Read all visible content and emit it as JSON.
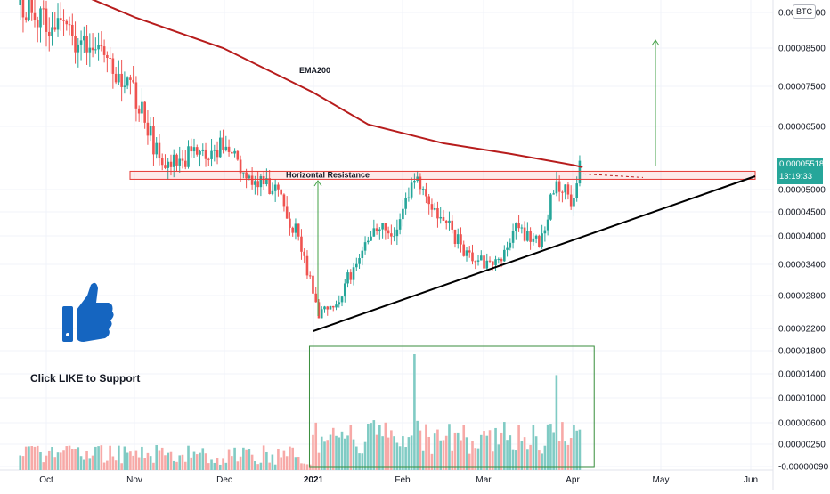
{
  "chart_data": {
    "type": "candlestick",
    "symbol_badge": "BTC",
    "price_axis_labels": [
      "0.00009500",
      "0.00008500",
      "0.00007500",
      "0.00006500",
      "0.00005000",
      "0.00004500",
      "0.00004000",
      "0.00003400",
      "0.00002800",
      "0.00002200",
      "0.00001800",
      "0.00001400",
      "0.00001000",
      "0.00000600",
      "0.00000250",
      "-0.00000090"
    ],
    "time_axis_labels": [
      "Oct",
      "Nov",
      "Dec",
      "2021",
      "Feb",
      "Mar",
      "Apr",
      "May",
      "Jun"
    ],
    "current_price": "0.00005518",
    "countdown": "13:19:33",
    "annotations": {
      "ema": "EMA200",
      "resistance": "Horizontal Resistance",
      "call_to_action": "Click LIKE to Support"
    },
    "price_range": [
      1.9e-05,
      9.8e-05
    ],
    "resistance_level": 5.35e-05,
    "ema200_path": [
      [
        "2020-10-10",
        0.000101
      ],
      [
        "2020-11-01",
        9.35e-05
      ],
      [
        "2020-12-01",
        8.5e-05
      ],
      [
        "2021-01-01",
        7.35e-05
      ],
      [
        "2021-01-20",
        6.55e-05
      ],
      [
        "2021-02-15",
        6.1e-05
      ],
      [
        "2021-03-10",
        5.85e-05
      ],
      [
        "2021-04-01",
        5.58e-05
      ],
      [
        "2021-04-04",
        5.53e-05
      ]
    ],
    "trendline_support": [
      [
        "2021-01-01",
        2.15e-05
      ],
      [
        "2021-06-01",
        5.27e-05
      ]
    ],
    "price_path": [
      [
        "2020-09-22",
        9.7e-05
      ],
      [
        "2020-10-05",
        9e-05
      ],
      [
        "2020-10-20",
        8.2e-05
      ],
      [
        "2020-11-01",
        7.2e-05
      ],
      [
        "2020-11-10",
        5.5e-05
      ],
      [
        "2020-11-20",
        5.8e-05
      ],
      [
        "2020-12-01",
        6e-05
      ],
      [
        "2020-12-10",
        5.4e-05
      ],
      [
        "2020-12-20",
        4.9e-05
      ],
      [
        "2020-12-28",
        3.8e-05
      ],
      [
        "2021-01-03",
        2.4e-05
      ],
      [
        "2021-01-10",
        2.8e-05
      ],
      [
        "2021-01-22",
        4.1e-05
      ],
      [
        "2021-01-31",
        4.2e-05
      ],
      [
        "2021-02-05",
        5.2e-05
      ],
      [
        "2021-02-15",
        4.3e-05
      ],
      [
        "2021-02-25",
        3.5e-05
      ],
      [
        "2021-03-05",
        3.4e-05
      ],
      [
        "2021-03-12",
        4.2e-05
      ],
      [
        "2021-03-20",
        3.8e-05
      ],
      [
        "2021-03-26",
        5.2e-05
      ],
      [
        "2021-03-31",
        4.8e-05
      ],
      [
        "2021-04-03",
        5.5e-05
      ]
    ],
    "volume_box": [
      "2021-01-01",
      "2021-04-08"
    ],
    "volume_spikes": [
      [
        "2021-02-05",
        1.0
      ],
      [
        "2021-03-26",
        0.82
      ]
    ]
  }
}
